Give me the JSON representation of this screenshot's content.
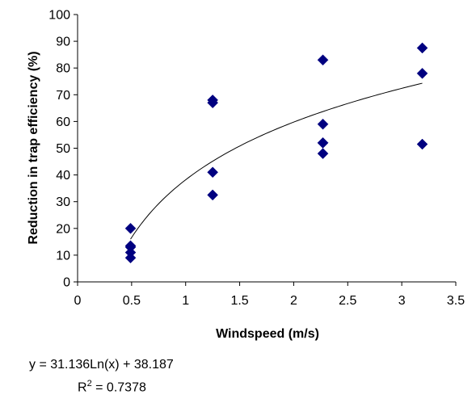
{
  "chart_data": {
    "type": "scatter",
    "title": "",
    "xlabel": "Windspeed (m/s)",
    "ylabel": "Reduction in trap efficiency (%)",
    "xlim": [
      0,
      3.5
    ],
    "ylim": [
      0,
      100
    ],
    "x_ticks": [
      0,
      0.5,
      1,
      1.5,
      2,
      2.5,
      3,
      3.5
    ],
    "x_tick_labels": [
      "0",
      "0.5",
      "1",
      "1.5",
      "2",
      "2.5",
      "3",
      "3.5"
    ],
    "y_ticks": [
      0,
      10,
      20,
      30,
      40,
      50,
      60,
      70,
      80,
      90,
      100
    ],
    "y_tick_labels": [
      "0",
      "10",
      "20",
      "30",
      "40",
      "50",
      "60",
      "70",
      "80",
      "90",
      "100"
    ],
    "grid": false,
    "legend": "none",
    "marker": "diamond",
    "marker_color": "#000080",
    "trendline_color": "#000000",
    "series": [
      {
        "x": [
          0.49,
          0.49,
          0.49,
          0.49,
          0.49,
          1.25,
          1.25,
          1.25,
          1.25,
          2.27,
          2.27,
          2.27,
          2.27,
          2.27,
          3.19,
          3.19,
          3.19
        ],
        "y": [
          20,
          13.5,
          11,
          9,
          13,
          67,
          68,
          41,
          32.5,
          83,
          59,
          52,
          48,
          52,
          87.5,
          78,
          51.5
        ]
      }
    ],
    "trendline": {
      "type": "log",
      "a": 31.136,
      "b": 38.187,
      "x_range": [
        0.49,
        3.19
      ],
      "equation": "y = 31.136Ln(x) + 38.187",
      "r2_prefix": "R",
      "r2_sup": "2",
      "r2_value": " = 0.7378"
    }
  }
}
